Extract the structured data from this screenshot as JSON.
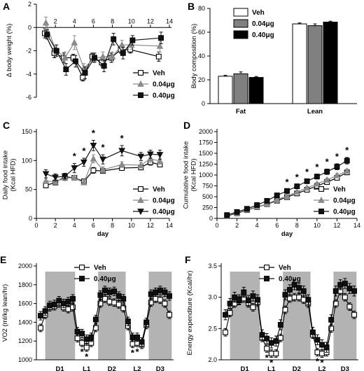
{
  "chart_data": [
    {
      "id": "A",
      "type": "line",
      "panel_label": "A",
      "ylabel": "Δ body weight (%)",
      "xlabel": "",
      "xlim": [
        0,
        14
      ],
      "ylim": [
        -6,
        2
      ],
      "xticks": [
        "2",
        "4",
        "6",
        "8",
        "10",
        "12",
        "14"
      ],
      "yticks": [
        "2",
        "0",
        "-2",
        "-4",
        "-6"
      ],
      "x": [
        1,
        2,
        3,
        4,
        5,
        6,
        7,
        8,
        9,
        10,
        13
      ],
      "series": [
        {
          "name": "Veh",
          "color": "#ffffff",
          "marker": "square",
          "values": [
            -0.5,
            -2.2,
            -2.6,
            -2.6,
            -4.3,
            -2.5,
            -3.0,
            -2.6,
            -1.9,
            -1.9,
            -2.5
          ],
          "err": [
            0.4,
            0.4,
            0.4,
            0.3,
            0.3,
            0.3,
            0.3,
            0.4,
            0.3,
            0.3,
            0.4
          ]
        },
        {
          "name": "0.04μg",
          "color": "#8a8a8a",
          "marker": "triangle",
          "values": [
            0.4,
            -1.9,
            -2.6,
            -1.3,
            -3.5,
            -2.7,
            -2.5,
            -2.5,
            -1.5,
            -1.5,
            -1.6
          ],
          "err": [
            0.5,
            0.4,
            0.5,
            0.6,
            0.4,
            0.3,
            0.4,
            0.4,
            0.4,
            0.4,
            0.5
          ]
        },
        {
          "name": "0.40μg",
          "color": "#111111",
          "marker": "square",
          "values": [
            -0.6,
            -2.0,
            -3.6,
            -2.9,
            -3.9,
            -2.6,
            -3.3,
            -1.0,
            -2.2,
            -1.1,
            -0.9
          ],
          "err": [
            0.4,
            0.5,
            0.5,
            0.5,
            0.5,
            0.4,
            0.5,
            0.5,
            0.5,
            0.4,
            0.5
          ]
        }
      ],
      "legend": [
        "Veh",
        "0.04μg",
        "0.40μg"
      ]
    },
    {
      "id": "B",
      "type": "bar",
      "panel_label": "B",
      "ylabel": "Body composition (%)",
      "categories": [
        "Fat",
        "Lean"
      ],
      "ylim": [
        0,
        80
      ],
      "yticks": [
        "0",
        "20",
        "40",
        "60",
        "80"
      ],
      "series": [
        {
          "name": "Veh",
          "color": "#ffffff",
          "values": [
            23,
            67
          ],
          "err": [
            0.8,
            0.8
          ]
        },
        {
          "name": "0.04μg",
          "color": "#808080",
          "values": [
            25,
            65.5
          ],
          "err": [
            1.6,
            1.5
          ]
        },
        {
          "name": "0.40μg",
          "color": "#000000",
          "values": [
            22,
            68.5
          ],
          "err": [
            0.8,
            0.8
          ]
        }
      ]
    },
    {
      "id": "C",
      "type": "line",
      "panel_label": "C",
      "ylabel": "Daily food intake\n(Kcal HFD)",
      "xlabel": "day",
      "xlim": [
        0,
        14
      ],
      "ylim": [
        0,
        150
      ],
      "xticks": [
        "0",
        "2",
        "4",
        "6",
        "8",
        "10",
        "12",
        "14"
      ],
      "yticks": [
        "0",
        "50",
        "100",
        "150"
      ],
      "x": [
        1,
        2,
        3,
        4,
        5,
        6,
        7,
        9,
        11,
        12,
        13
      ],
      "series": [
        {
          "name": "Veh",
          "color": "#ffffff",
          "marker": "square",
          "values": [
            57,
            62,
            72,
            70,
            64,
            83,
            82,
            87,
            88,
            97,
            93
          ],
          "err": [
            4,
            4,
            4,
            4,
            3,
            5,
            4,
            4,
            4,
            5,
            4
          ]
        },
        {
          "name": "0.04μg",
          "color": "#8a8a8a",
          "marker": "triangle",
          "values": [
            65,
            63,
            70,
            70,
            62,
            103,
            84,
            93,
            92,
            103,
            99
          ],
          "err": [
            5,
            4,
            5,
            4,
            4,
            7,
            5,
            5,
            5,
            6,
            5
          ]
        },
        {
          "name": "0.40μg",
          "color": "#111111",
          "marker": "triangle-down",
          "values": [
            77,
            71,
            73,
            87,
            97,
            126,
            102,
            117,
            107,
            111,
            110
          ],
          "err": [
            7,
            6,
            5,
            8,
            7,
            9,
            8,
            9,
            7,
            7,
            8
          ]
        }
      ],
      "stars_x": [
        4,
        5,
        6,
        7,
        9
      ],
      "star_text": "*",
      "legend": [
        "Veh",
        "0.04μg",
        "0.40μg"
      ]
    },
    {
      "id": "D",
      "type": "line",
      "panel_label": "D",
      "ylabel": "Cumulative food intake\n(Kcal HFD)",
      "xlabel": "day",
      "xlim": [
        0,
        14
      ],
      "ylim": [
        0,
        2000
      ],
      "xticks": [
        "0",
        "2",
        "4",
        "6",
        "8",
        "10",
        "12",
        "14"
      ],
      "yticks": [
        "0",
        "250",
        "500",
        "750",
        "1000",
        "1250",
        "1500",
        "1750",
        "2000"
      ],
      "x": [
        1,
        2,
        3,
        4,
        5,
        6,
        7,
        8,
        9,
        10,
        11,
        12,
        13
      ],
      "series": [
        {
          "name": "Veh",
          "color": "#ffffff",
          "marker": "square",
          "values": [
            57,
            119,
            191,
            261,
            325,
            408,
            490,
            575,
            660,
            748,
            838,
            935,
            1060
          ],
          "err": [
            5,
            8,
            10,
            13,
            15,
            18,
            20,
            24,
            28,
            32,
            36,
            40,
            45
          ]
        },
        {
          "name": "0.04μg",
          "color": "#8a8a8a",
          "marker": "triangle",
          "values": [
            65,
            128,
            198,
            268,
            330,
            433,
            517,
            610,
            703,
            795,
            887,
            990,
            1090
          ],
          "err": [
            6,
            9,
            12,
            15,
            17,
            21,
            25,
            30,
            33,
            37,
            41,
            45,
            50
          ]
        },
        {
          "name": "0.40μg",
          "color": "#111111",
          "marker": "square",
          "values": [
            77,
            148,
            221,
            308,
            405,
            531,
            633,
            740,
            857,
            964,
            1075,
            1190,
            1330
          ],
          "err": [
            8,
            12,
            15,
            20,
            25,
            30,
            36,
            42,
            48,
            55,
            62,
            68,
            75
          ]
        }
      ],
      "stars_x": [
        7,
        8,
        9,
        10,
        11,
        12,
        13
      ],
      "star_text": "*",
      "legend": [
        "Veh",
        "0.04μg",
        "0.40μg"
      ]
    },
    {
      "id": "E",
      "type": "line",
      "panel_label": "E",
      "ylabel": "VO2 (ml/kg lean/hr)",
      "ylim": [
        1000,
        2000
      ],
      "yticks": [
        "1000",
        "1200",
        "1400",
        "1600",
        "1800",
        "2000"
      ],
      "phase_labels": [
        "D1",
        "L1",
        "D2",
        "L2",
        "D3"
      ],
      "star_text": "*",
      "series": [
        {
          "name": "Veh",
          "color": "#ffffff",
          "marker": "square",
          "values": [
            1340,
            1480,
            1560,
            1570,
            1600,
            1560,
            1540,
            1560,
            1230,
            1180,
            1130,
            1180,
            1340,
            1600,
            1650,
            1620,
            1610,
            1590,
            1550,
            1360,
            1170,
            1180,
            1160,
            1370,
            1610,
            1650,
            1640,
            1600,
            1480
          ]
        },
        {
          "name": "0.40μg",
          "color": "#111111",
          "marker": "square",
          "values": [
            1470,
            1520,
            1580,
            1590,
            1630,
            1600,
            1620,
            1650,
            1300,
            1280,
            1220,
            1240,
            1430,
            1690,
            1740,
            1720,
            1730,
            1680,
            1650,
            1410,
            1240,
            1240,
            1190,
            1400,
            1700,
            1720,
            1740,
            1720,
            1680
          ]
        }
      ],
      "err_veh": 40,
      "err_trt": 45,
      "legend": [
        "Veh",
        "0.40μg"
      ]
    },
    {
      "id": "F",
      "type": "line",
      "panel_label": "F",
      "ylabel": "Energy expenditure (Kcal/hr)",
      "ylim": [
        2.0,
        3.5
      ],
      "yticks": [
        "2.0",
        "2.5",
        "3.0",
        "3.5"
      ],
      "phase_labels": [
        "D1",
        "L1",
        "D2",
        "L2",
        "D3"
      ],
      "star_text": "*",
      "series": [
        {
          "name": "Veh",
          "color": "#ffffff",
          "marker": "square",
          "values": [
            2.44,
            2.75,
            2.9,
            2.95,
            2.98,
            2.9,
            2.84,
            2.92,
            2.35,
            2.18,
            2.1,
            2.1,
            2.35,
            2.8,
            2.98,
            3.0,
            3.0,
            2.96,
            2.9,
            2.4,
            2.12,
            2.1,
            2.12,
            2.5,
            2.9,
            3.1,
            3.0,
            2.85,
            2.72
          ]
        },
        {
          "name": "0.40μg",
          "color": "#111111",
          "marker": "square",
          "values": [
            2.72,
            2.9,
            3.0,
            2.96,
            3.08,
            2.95,
            3.02,
            2.96,
            2.4,
            2.34,
            2.27,
            2.3,
            2.56,
            3.04,
            3.12,
            3.2,
            3.15,
            3.1,
            2.96,
            2.44,
            2.32,
            2.24,
            2.2,
            2.64,
            3.1,
            3.2,
            3.22,
            3.14,
            3.1
          ]
        }
      ],
      "err_veh": 0.06,
      "err_trt": 0.08,
      "legend": [
        "Veh",
        "0.40μg"
      ]
    }
  ]
}
